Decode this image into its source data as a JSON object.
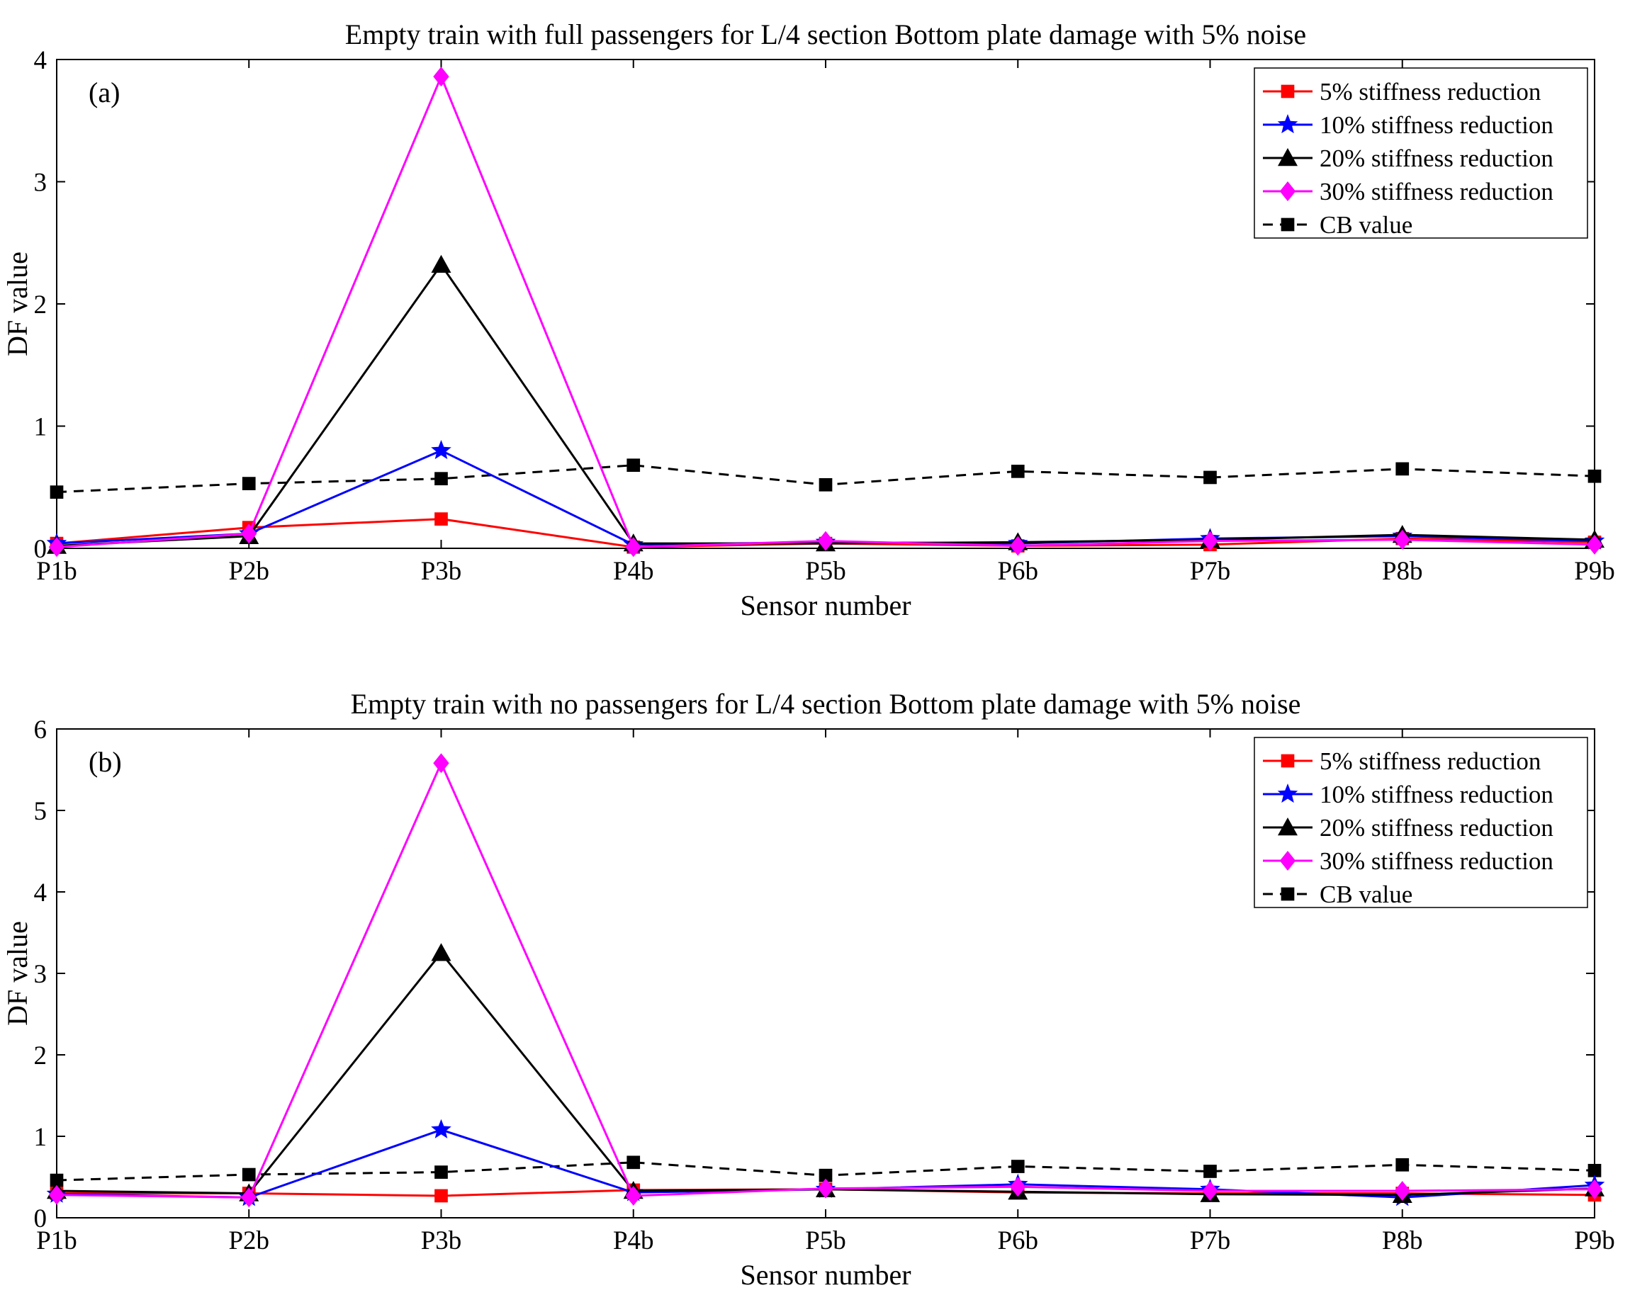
{
  "chart_data": [
    {
      "type": "line",
      "panel_label": "(a)",
      "title": "Empty train with full passengers for L/4 section Bottom plate damage with 5% noise",
      "xlabel": "Sensor number",
      "ylabel": "DF value",
      "categories": [
        "P1b",
        "P2b",
        "P3b",
        "P4b",
        "P5b",
        "P6b",
        "P7b",
        "P8b",
        "P9b"
      ],
      "ylim": [
        0,
        4
      ],
      "yticks": [
        "0",
        "1",
        "2",
        "3",
        "4"
      ],
      "grid": false,
      "legend_position": "top-right",
      "series": [
        {
          "name": "5% stiffness reduction",
          "color": "#ff0000",
          "marker": "square",
          "dash": "solid",
          "values": [
            0.04,
            0.17,
            0.24,
            0.01,
            0.04,
            0.02,
            0.03,
            0.08,
            0.05
          ]
        },
        {
          "name": "10% stiffness reduction",
          "color": "#0000ff",
          "marker": "star",
          "dash": "solid",
          "values": [
            0.04,
            0.12,
            0.8,
            0.03,
            0.05,
            0.04,
            0.08,
            0.1,
            0.06
          ]
        },
        {
          "name": "20% stiffness reduction",
          "color": "#000000",
          "marker": "triangle",
          "dash": "solid",
          "values": [
            0.02,
            0.1,
            2.32,
            0.04,
            0.04,
            0.05,
            0.07,
            0.11,
            0.07
          ]
        },
        {
          "name": "30% stiffness reduction",
          "color": "#ff00ff",
          "marker": "diamond",
          "dash": "solid",
          "values": [
            0.01,
            0.12,
            3.86,
            0.01,
            0.06,
            0.02,
            0.06,
            0.07,
            0.03
          ]
        },
        {
          "name": "CB value",
          "color": "#000000",
          "marker": "square",
          "dash": "dashed",
          "values": [
            0.46,
            0.53,
            0.57,
            0.68,
            0.52,
            0.63,
            0.58,
            0.65,
            0.59
          ]
        }
      ]
    },
    {
      "type": "line",
      "panel_label": "(b)",
      "title": "Empty train with no passengers for L/4 section Bottom plate damage with 5% noise",
      "xlabel": "Sensor number",
      "ylabel": "DF value",
      "categories": [
        "P1b",
        "P2b",
        "P3b",
        "P4b",
        "P5b",
        "P6b",
        "P7b",
        "P8b",
        "P9b"
      ],
      "ylim": [
        0,
        6
      ],
      "yticks": [
        "0",
        "1",
        "2",
        "3",
        "4",
        "5",
        "6"
      ],
      "grid": false,
      "legend_position": "top-right",
      "series": [
        {
          "name": "5% stiffness reduction",
          "color": "#ff0000",
          "marker": "square",
          "dash": "solid",
          "values": [
            0.3,
            0.3,
            0.27,
            0.34,
            0.35,
            0.31,
            0.3,
            0.3,
            0.28
          ]
        },
        {
          "name": "10% stiffness reduction",
          "color": "#0000ff",
          "marker": "star",
          "dash": "solid",
          "values": [
            0.29,
            0.25,
            1.08,
            0.31,
            0.35,
            0.41,
            0.35,
            0.25,
            0.4
          ]
        },
        {
          "name": "20% stiffness reduction",
          "color": "#000000",
          "marker": "triangle",
          "dash": "solid",
          "values": [
            0.33,
            0.3,
            3.25,
            0.33,
            0.35,
            0.32,
            0.29,
            0.28,
            0.36
          ]
        },
        {
          "name": "30% stiffness reduction",
          "color": "#ff00ff",
          "marker": "diamond",
          "dash": "solid",
          "values": [
            0.28,
            0.25,
            5.58,
            0.27,
            0.36,
            0.38,
            0.33,
            0.33,
            0.35
          ]
        },
        {
          "name": "CB value",
          "color": "#000000",
          "marker": "square",
          "dash": "dashed",
          "values": [
            0.46,
            0.53,
            0.56,
            0.68,
            0.52,
            0.63,
            0.57,
            0.65,
            0.58
          ]
        }
      ]
    }
  ]
}
